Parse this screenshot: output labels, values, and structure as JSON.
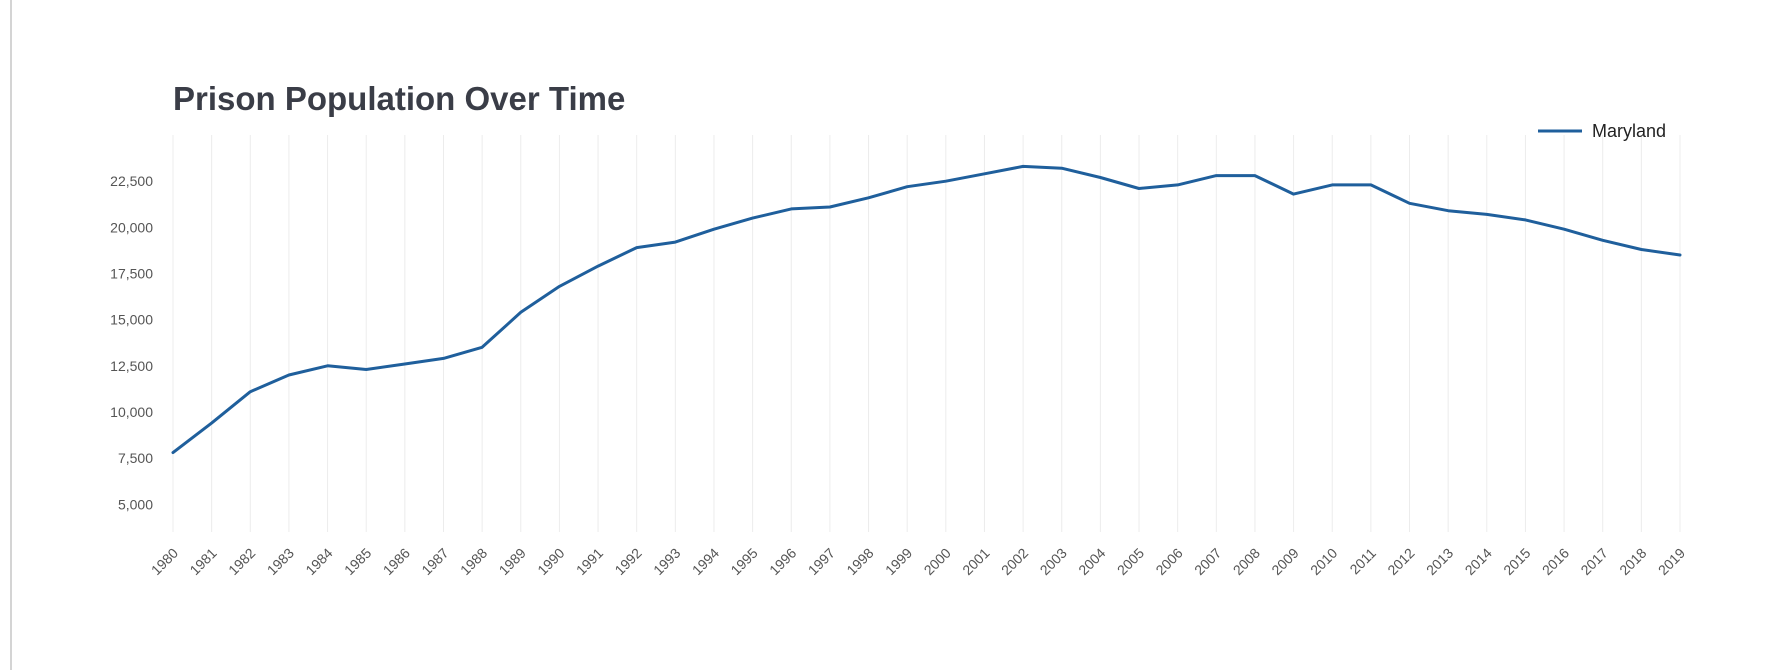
{
  "chart_data": {
    "type": "line",
    "title": "Prison Population Over Time",
    "xlabel": "",
    "ylabel": "",
    "x": [
      "1980",
      "1981",
      "1982",
      "1983",
      "1984",
      "1985",
      "1986",
      "1987",
      "1988",
      "1989",
      "1990",
      "1991",
      "1992",
      "1993",
      "1994",
      "1995",
      "1996",
      "1997",
      "1998",
      "1999",
      "2000",
      "2001",
      "2002",
      "2003",
      "2004",
      "2005",
      "2006",
      "2007",
      "2008",
      "2009",
      "2010",
      "2011",
      "2012",
      "2013",
      "2014",
      "2015",
      "2016",
      "2017",
      "2018",
      "2019"
    ],
    "series": [
      {
        "name": "Maryland",
        "color": "#1f5f9c",
        "values": [
          7800,
          9400,
          11100,
          12000,
          12500,
          12300,
          12600,
          12900,
          13500,
          15400,
          16800,
          17900,
          18900,
          19200,
          19900,
          20500,
          21000,
          21100,
          21600,
          22200,
          22500,
          22900,
          23300,
          23200,
          22700,
          22100,
          22300,
          22800,
          22800,
          21800,
          22300,
          22300,
          21300,
          20900,
          20700,
          20400,
          19900,
          19300,
          18800,
          18500
        ]
      }
    ],
    "y_ticks": [
      "5,000",
      "7,500",
      "10,000",
      "12,500",
      "15,000",
      "17,500",
      "20,000",
      "22,500"
    ],
    "y_tick_values": [
      5000,
      7500,
      10000,
      12500,
      15000,
      17500,
      20000,
      22500
    ],
    "ylim": [
      3500,
      25000
    ],
    "grid": "vertical",
    "legend_position": "top-right"
  }
}
